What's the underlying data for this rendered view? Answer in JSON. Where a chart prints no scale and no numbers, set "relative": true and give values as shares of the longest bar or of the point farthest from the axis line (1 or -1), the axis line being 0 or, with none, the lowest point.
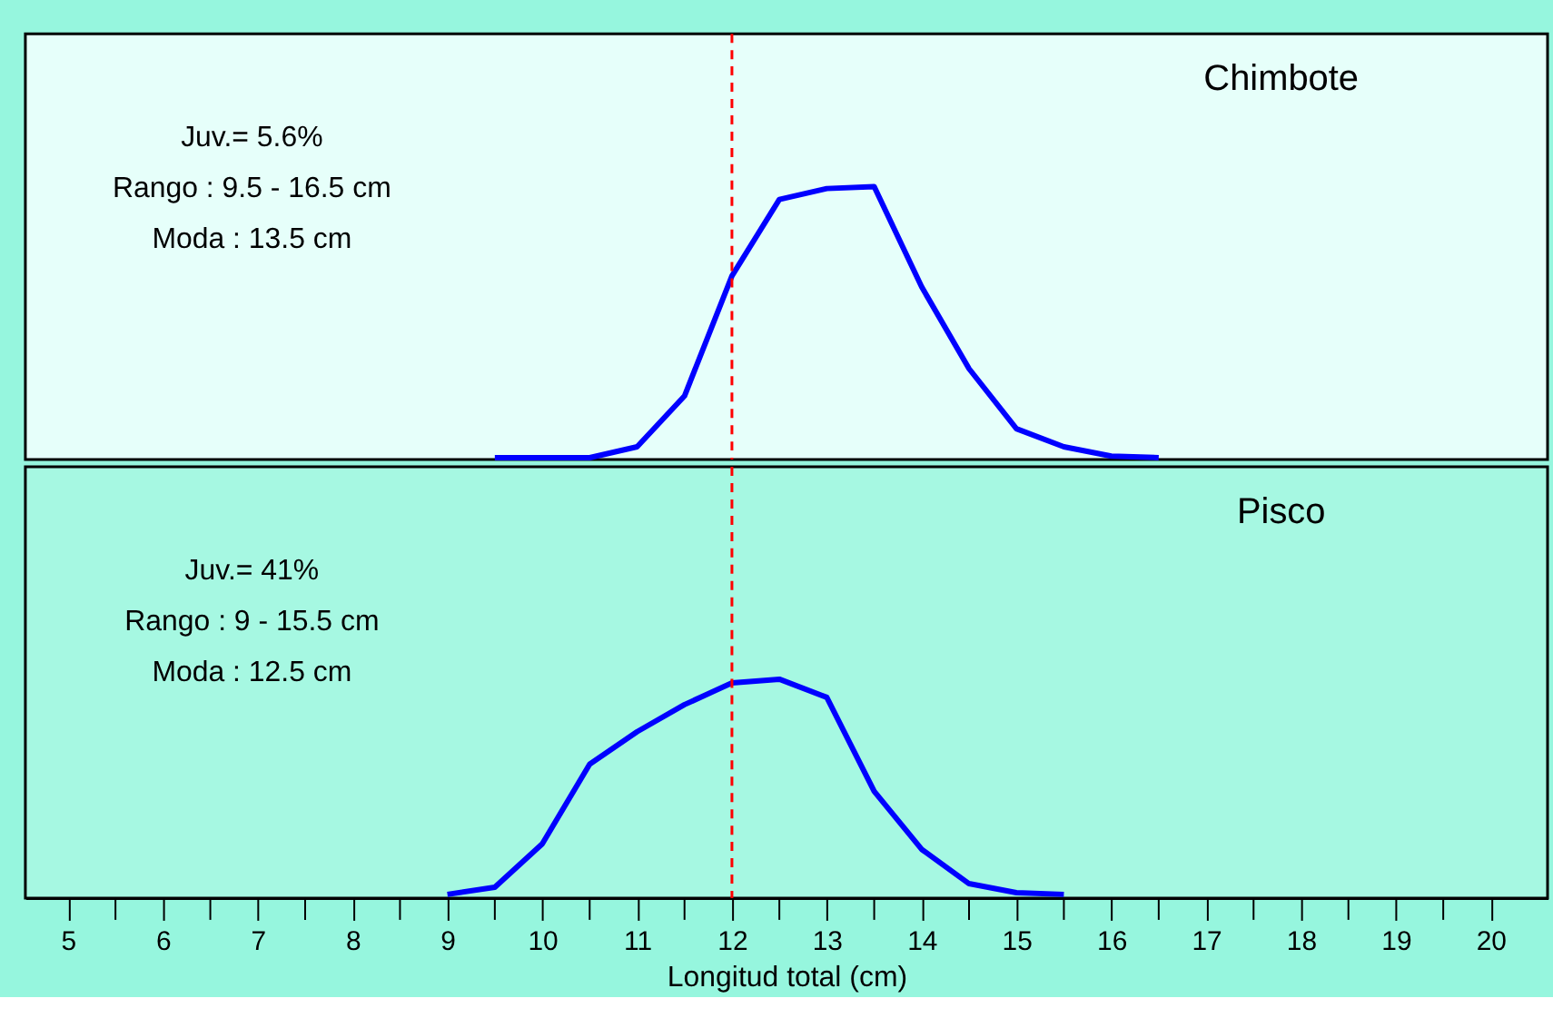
{
  "chart_data": [
    {
      "type": "line",
      "title": "Chimbote",
      "relative": true,
      "tick_labels": false,
      "xlim": [
        4.55,
        20.6
      ],
      "grid": false,
      "legend": false,
      "marker": "none",
      "line_style": "solid",
      "x": [
        9.5,
        10,
        10.5,
        11,
        11.5,
        12,
        12.5,
        13,
        13.5,
        14,
        14.5,
        15,
        15.5,
        16,
        16.5
      ],
      "series": [
        {
          "color": "#0000ff",
          "values": [
            0.007,
            0.007,
            0.007,
            0.047,
            0.233,
            0.673,
            0.953,
            0.993,
            1,
            0.633,
            0.333,
            0.113,
            0.047,
            0.013,
            0.007
          ]
        }
      ],
      "ref_lines": [
        {
          "axis": "x",
          "value": 12,
          "color": "#ff0000",
          "line_style": "dashed"
        }
      ],
      "annotations": [
        "Juv.= 5.6%",
        "Rango : 9.5 - 16.5 cm",
        "Moda : 13.5 cm"
      ]
    },
    {
      "type": "line",
      "title": "Pisco",
      "relative": true,
      "xlabel": "Longitud total (cm)",
      "xlim": [
        4.55,
        20.6
      ],
      "grid": false,
      "legend": false,
      "marker": "none",
      "line_style": "solid",
      "xticks": [
        5,
        {
          "value": 5.5,
          "label": null
        },
        6,
        {
          "value": 6.5,
          "label": null
        },
        7,
        {
          "value": 7.5,
          "label": null
        },
        8,
        {
          "value": 8.5,
          "label": null
        },
        9,
        {
          "value": 9.5,
          "label": null
        },
        10,
        {
          "value": 10.5,
          "label": null
        },
        11,
        {
          "value": 11.5,
          "label": null
        },
        12,
        {
          "value": 12.5,
          "label": null
        },
        13,
        {
          "value": 13.5,
          "label": null
        },
        14,
        {
          "value": 14.5,
          "label": null
        },
        15,
        {
          "value": 15.5,
          "label": null
        },
        16,
        {
          "value": 16.5,
          "label": null
        },
        17,
        {
          "value": 17.5,
          "label": null
        },
        18,
        {
          "value": 18.5,
          "label": null
        },
        19,
        {
          "value": 19.5,
          "label": null
        },
        20
      ],
      "x": [
        9,
        9.5,
        10,
        10.5,
        11,
        11.5,
        12,
        12.5,
        13,
        13.5,
        14,
        14.5,
        15,
        15.5
      ],
      "series": [
        {
          "color": "#0000ff",
          "values": [
            0.017,
            0.05,
            0.248,
            0.612,
            0.76,
            0.884,
            0.983,
            1,
            0.917,
            0.488,
            0.223,
            0.066,
            0.025,
            0.017
          ]
        }
      ],
      "ref_lines": [
        {
          "axis": "x",
          "value": 12,
          "color": "#ff0000",
          "line_style": "dashed"
        }
      ],
      "annotations": [
        "Juv.= 41%",
        "Rango : 9 - 15.5 cm",
        "Moda : 12.5 cm"
      ]
    }
  ]
}
